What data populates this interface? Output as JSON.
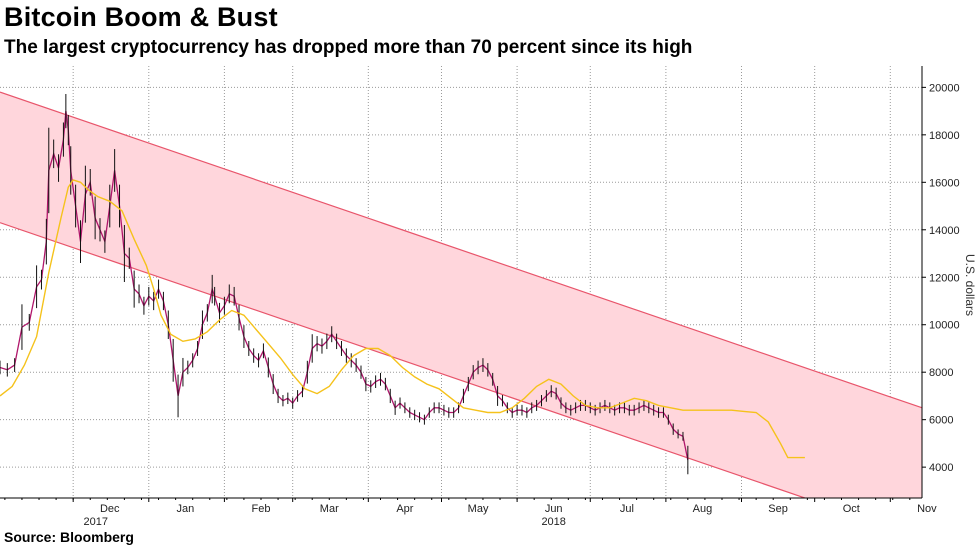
{
  "header": {
    "title": "Bitcoin Boom & Bust",
    "subtitle": "The largest cryptocurrency has dropped more than 70 percent since its high"
  },
  "footer": {
    "source": "Source: Bloomberg"
  },
  "colors": {
    "channel_fill": "#ffd6dc",
    "channel_line": "#e8556b",
    "candle": "#b0166b",
    "moving_average": "#f5c21b",
    "grid": "#9a9a9a"
  },
  "chart_data": {
    "type": "line",
    "ylabel": "U.S. dollars",
    "ylim": [
      2700,
      20900
    ],
    "y_ticks": [
      4000,
      6000,
      8000,
      10000,
      12000,
      14000,
      16000,
      18000,
      20000
    ],
    "x_ticks": [
      {
        "label": "Dec",
        "year": "2017",
        "day": 30
      },
      {
        "label": "Jan",
        "day": 61
      },
      {
        "label": "Feb",
        "day": 92
      },
      {
        "label": "Mar",
        "day": 120
      },
      {
        "label": "Apr",
        "day": 151
      },
      {
        "label": "May",
        "day": 181
      },
      {
        "label": "Jun",
        "year": "2018",
        "day": 212
      },
      {
        "label": "Jul",
        "day": 242
      },
      {
        "label": "Aug",
        "day": 273
      },
      {
        "label": "Sep",
        "day": 304
      },
      {
        "label": "Oct",
        "day": 334
      },
      {
        "label": "Nov",
        "day": 365
      }
    ],
    "channel": {
      "upper": [
        {
          "day": 0,
          "value": 19800
        },
        {
          "day": 378,
          "value": 6500
        }
      ],
      "lower": [
        {
          "day": 0,
          "value": 14300
        },
        {
          "day": 330,
          "value": 2700
        }
      ]
    },
    "series": [
      {
        "name": "",
        "style": "price",
        "points": [
          [
            0,
            8200
          ],
          [
            3,
            8100
          ],
          [
            6,
            8300
          ],
          [
            9,
            9900
          ],
          [
            12,
            10100
          ],
          [
            15,
            11600
          ],
          [
            17,
            11900
          ],
          [
            19,
            13500
          ],
          [
            20,
            16500
          ],
          [
            22,
            17200
          ],
          [
            24,
            16600
          ],
          [
            26,
            17800
          ],
          [
            27,
            19000
          ],
          [
            28,
            18200
          ],
          [
            29,
            16500
          ],
          [
            31,
            15000
          ],
          [
            33,
            13500
          ],
          [
            35,
            15500
          ],
          [
            37,
            16000
          ],
          [
            39,
            14500
          ],
          [
            41,
            14000
          ],
          [
            43,
            13500
          ],
          [
            45,
            15000
          ],
          [
            47,
            16500
          ],
          [
            49,
            15000
          ],
          [
            51,
            13000
          ],
          [
            53,
            12800
          ],
          [
            55,
            11500
          ],
          [
            57,
            11300
          ],
          [
            59,
            10800
          ],
          [
            61,
            11200
          ],
          [
            63,
            11000
          ],
          [
            65,
            11500
          ],
          [
            67,
            11000
          ],
          [
            69,
            10000
          ],
          [
            71,
            8500
          ],
          [
            73,
            7000
          ],
          [
            75,
            8000
          ],
          [
            77,
            8200
          ],
          [
            79,
            8500
          ],
          [
            81,
            9000
          ],
          [
            83,
            10000
          ],
          [
            85,
            10500
          ],
          [
            87,
            11500
          ],
          [
            88,
            11200
          ],
          [
            90,
            10500
          ],
          [
            92,
            10800
          ],
          [
            94,
            11300
          ],
          [
            96,
            11200
          ],
          [
            98,
            10300
          ],
          [
            100,
            9500
          ],
          [
            102,
            9000
          ],
          [
            104,
            8700
          ],
          [
            106,
            8500
          ],
          [
            108,
            8900
          ],
          [
            110,
            8200
          ],
          [
            112,
            7500
          ],
          [
            114,
            7000
          ],
          [
            116,
            6800
          ],
          [
            118,
            6900
          ],
          [
            120,
            6700
          ],
          [
            122,
            7000
          ],
          [
            124,
            7200
          ],
          [
            126,
            8000
          ],
          [
            128,
            9000
          ],
          [
            130,
            9200
          ],
          [
            132,
            9100
          ],
          [
            134,
            9300
          ],
          [
            136,
            9600
          ],
          [
            138,
            9300
          ],
          [
            140,
            9000
          ],
          [
            142,
            8700
          ],
          [
            144,
            8500
          ],
          [
            146,
            8300
          ],
          [
            148,
            8000
          ],
          [
            150,
            7500
          ],
          [
            152,
            7400
          ],
          [
            154,
            7600
          ],
          [
            156,
            7700
          ],
          [
            158,
            7500
          ],
          [
            160,
            7000
          ],
          [
            162,
            6500
          ],
          [
            164,
            6700
          ],
          [
            166,
            6500
          ],
          [
            168,
            6300
          ],
          [
            170,
            6200
          ],
          [
            172,
            6100
          ],
          [
            174,
            6000
          ],
          [
            176,
            6300
          ],
          [
            178,
            6500
          ],
          [
            180,
            6500
          ],
          [
            182,
            6400
          ],
          [
            184,
            6300
          ],
          [
            186,
            6300
          ],
          [
            188,
            6500
          ],
          [
            190,
            7000
          ],
          [
            192,
            7500
          ],
          [
            194,
            8000
          ],
          [
            196,
            8200
          ],
          [
            198,
            8300
          ],
          [
            200,
            8100
          ],
          [
            202,
            7700
          ],
          [
            204,
            7000
          ],
          [
            206,
            6800
          ],
          [
            208,
            6500
          ],
          [
            210,
            6300
          ],
          [
            212,
            6400
          ],
          [
            214,
            6400
          ],
          [
            216,
            6300
          ],
          [
            218,
            6500
          ],
          [
            220,
            6600
          ],
          [
            222,
            6800
          ],
          [
            224,
            7000
          ],
          [
            226,
            7200
          ],
          [
            228,
            7100
          ],
          [
            230,
            6700
          ],
          [
            232,
            6500
          ],
          [
            234,
            6400
          ],
          [
            236,
            6500
          ],
          [
            238,
            6600
          ],
          [
            240,
            6600
          ],
          [
            242,
            6500
          ],
          [
            244,
            6400
          ],
          [
            246,
            6500
          ],
          [
            248,
            6600
          ],
          [
            250,
            6500
          ],
          [
            252,
            6400
          ],
          [
            254,
            6500
          ],
          [
            256,
            6500
          ],
          [
            258,
            6400
          ],
          [
            260,
            6400
          ],
          [
            262,
            6500
          ],
          [
            264,
            6600
          ],
          [
            266,
            6500
          ],
          [
            268,
            6400
          ],
          [
            270,
            6300
          ],
          [
            272,
            6300
          ],
          [
            274,
            6000
          ],
          [
            276,
            5600
          ],
          [
            278,
            5400
          ],
          [
            280,
            5300
          ],
          [
            282,
            4300
          ]
        ]
      },
      {
        "name": "",
        "style": "moving-average",
        "points": [
          [
            0,
            7000
          ],
          [
            5,
            7400
          ],
          [
            10,
            8300
          ],
          [
            15,
            9500
          ],
          [
            20,
            12200
          ],
          [
            25,
            14500
          ],
          [
            28,
            15800
          ],
          [
            30,
            16100
          ],
          [
            33,
            16000
          ],
          [
            36,
            15700
          ],
          [
            40,
            15400
          ],
          [
            45,
            15200
          ],
          [
            50,
            14800
          ],
          [
            55,
            13600
          ],
          [
            60,
            12500
          ],
          [
            63,
            11500
          ],
          [
            66,
            10400
          ],
          [
            70,
            9600
          ],
          [
            75,
            9300
          ],
          [
            80,
            9400
          ],
          [
            85,
            9700
          ],
          [
            90,
            10200
          ],
          [
            95,
            10600
          ],
          [
            100,
            10400
          ],
          [
            105,
            9800
          ],
          [
            110,
            9200
          ],
          [
            115,
            8600
          ],
          [
            120,
            7900
          ],
          [
            125,
            7300
          ],
          [
            130,
            7100
          ],
          [
            135,
            7400
          ],
          [
            140,
            8100
          ],
          [
            145,
            8700
          ],
          [
            150,
            9000
          ],
          [
            155,
            9000
          ],
          [
            160,
            8700
          ],
          [
            165,
            8200
          ],
          [
            170,
            7800
          ],
          [
            175,
            7500
          ],
          [
            180,
            7300
          ],
          [
            185,
            6900
          ],
          [
            190,
            6500
          ],
          [
            195,
            6400
          ],
          [
            200,
            6300
          ],
          [
            205,
            6300
          ],
          [
            210,
            6500
          ],
          [
            215,
            6900
          ],
          [
            220,
            7400
          ],
          [
            225,
            7700
          ],
          [
            230,
            7500
          ],
          [
            235,
            7000
          ],
          [
            240,
            6600
          ],
          [
            245,
            6500
          ],
          [
            250,
            6500
          ],
          [
            255,
            6700
          ],
          [
            260,
            6900
          ],
          [
            265,
            6800
          ],
          [
            270,
            6600
          ],
          [
            275,
            6500
          ],
          [
            280,
            6400
          ],
          [
            285,
            6400
          ],
          [
            290,
            6400
          ],
          [
            295,
            6400
          ],
          [
            300,
            6400
          ],
          [
            305,
            6350
          ],
          [
            310,
            6300
          ],
          [
            315,
            5900
          ],
          [
            320,
            5000
          ],
          [
            323,
            4400
          ],
          [
            330,
            4400
          ]
        ]
      }
    ]
  }
}
